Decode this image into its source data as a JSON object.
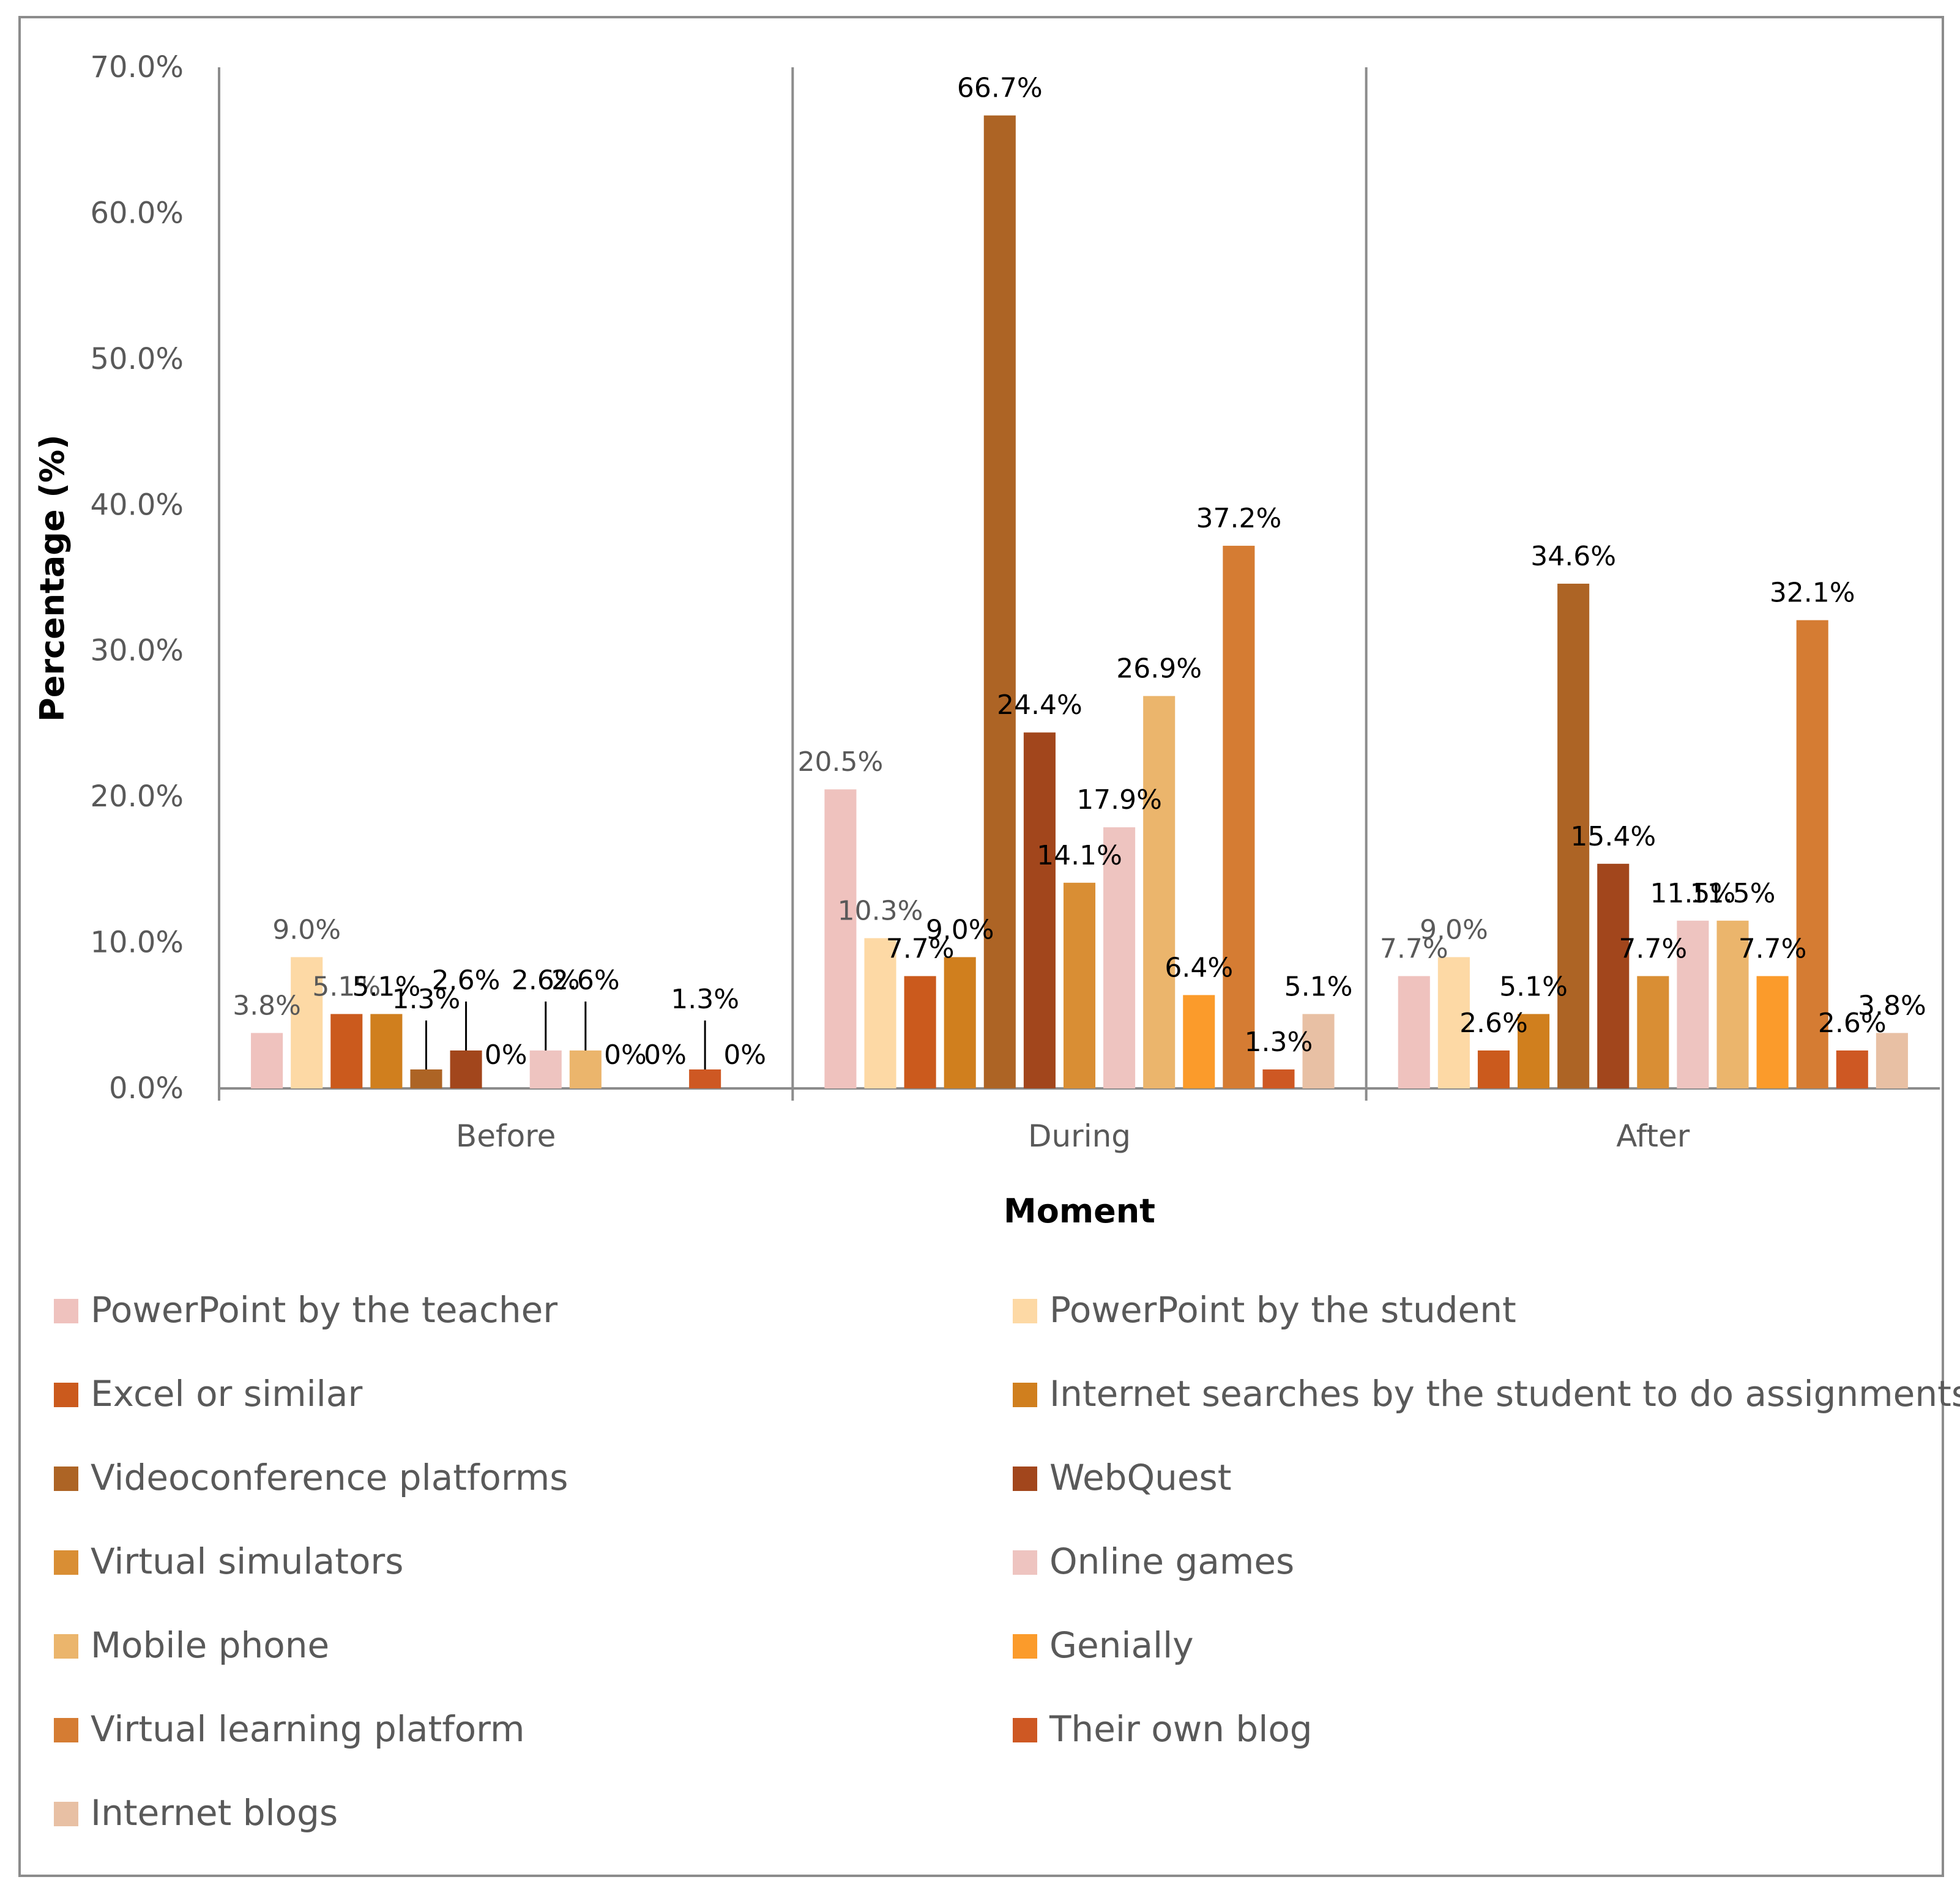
{
  "chart_data": {
    "type": "bar",
    "title": "",
    "xlabel": "Moment",
    "ylabel": "Percentage (%)",
    "ylim": [
      0,
      70
    ],
    "yticks": [
      0,
      10,
      20,
      30,
      40,
      50,
      60,
      70
    ],
    "ytick_labels": [
      "0.0%",
      "10.0%",
      "20.0%",
      "30.0%",
      "40.0%",
      "50.0%",
      "60.0%",
      "70.0%"
    ],
    "categories": [
      "Before",
      "During",
      "After"
    ],
    "legend_position": "bottom",
    "grid": false,
    "series": [
      {
        "name": "PowerPoint by the teacher",
        "color": "#EFC2BE",
        "values": [
          3.8,
          20.5,
          7.7
        ],
        "labels": [
          "3.8%",
          "20.5%",
          "7.7%"
        ]
      },
      {
        "name": "PowerPoint by the student",
        "color": "#FDD9A5",
        "values": [
          9.0,
          10.3,
          9.0
        ],
        "labels": [
          "9.0%",
          "10.3%",
          "9.0%"
        ]
      },
      {
        "name": "Excel or similar",
        "color": "#CB5A1D",
        "values": [
          5.1,
          7.7,
          2.6
        ],
        "labels": [
          "5.1%",
          "7.7%",
          "2.6%"
        ]
      },
      {
        "name": "Internet searches by the student to do assignments",
        "color": "#D07F1E",
        "values": [
          5.1,
          9.0,
          5.1
        ],
        "labels": [
          "5.1%",
          "9.0%",
          "5.1%"
        ]
      },
      {
        "name": "Videoconference platforms",
        "color": "#AD6425",
        "values": [
          1.3,
          66.7,
          34.6
        ],
        "labels": [
          "1.3%",
          "66.7%",
          "34.6%"
        ]
      },
      {
        "name": "WebQuest",
        "color": "#A2461C",
        "values": [
          2.6,
          24.4,
          15.4
        ],
        "labels": [
          "2.6%",
          "24.4%",
          "15.4%"
        ]
      },
      {
        "name": "Virtual simulators",
        "color": "#D98E34",
        "values": [
          0,
          14.1,
          7.7
        ],
        "labels": [
          "0%",
          "14.1%",
          "7.7%"
        ]
      },
      {
        "name": "Online games",
        "color": "#EEC4C0",
        "values": [
          2.6,
          17.9,
          11.5
        ],
        "labels": [
          "2.6%",
          "17.9%",
          "11.5%"
        ]
      },
      {
        "name": "Mobile phone",
        "color": "#EBB56C",
        "values": [
          2.6,
          26.9,
          11.5
        ],
        "labels": [
          "2.6%",
          "26.9%",
          "11.5%"
        ]
      },
      {
        "name": "Genially",
        "color": "#FB9B2B",
        "values": [
          0,
          6.4,
          7.7
        ],
        "labels": [
          "0%",
          "6.4%",
          "7.7%"
        ]
      },
      {
        "name": "Virtual learning platform",
        "color": "#D57C33",
        "values": [
          0,
          37.2,
          32.1
        ],
        "labels": [
          "0%",
          "37.2%",
          "32.1%"
        ]
      },
      {
        "name": "Their own blog",
        "color": "#CE5823",
        "values": [
          1.3,
          1.3,
          2.6
        ],
        "labels": [
          "1.3%",
          "1.3%",
          "2.6%"
        ]
      },
      {
        "name": "Internet blogs",
        "color": "#E8C0A4",
        "values": [
          0,
          5.1,
          3.8
        ],
        "labels": [
          "0%",
          "5.1%",
          "3.8%"
        ]
      }
    ]
  }
}
